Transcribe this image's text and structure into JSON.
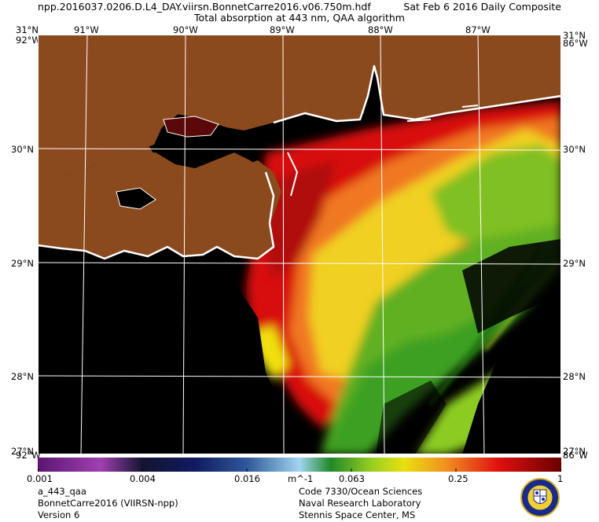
{
  "header": {
    "file": "npp.2016037.0206.D.L4_DAY.viirsn.BonnetCarre2016.v06.750m.hdf",
    "date": "Sat Feb  6 2016 Daily Composite",
    "product": "Total absorption at 443 nm, QAA algorithm"
  },
  "graticule": {
    "lon_labels": [
      "91°W",
      "90°W",
      "89°W",
      "88°W",
      "87°W"
    ],
    "lat_labels": [
      "31°N",
      "30°N",
      "29°N",
      "28°N",
      "27°N"
    ],
    "corner_labels": [
      "92°W",
      "86°W"
    ]
  },
  "colorbar": {
    "ticks": [
      "0.001",
      "0.004",
      "0.016",
      "0.063",
      "0.25",
      "1"
    ],
    "unit": "m^-1",
    "colors": [
      "#6a1a7a",
      "#a040b0",
      "#101850",
      "#2c5090",
      "#9ad0f0",
      "#28a020",
      "#e0e000",
      "#f09020",
      "#e01010",
      "#700000"
    ]
  },
  "footer": {
    "left": [
      "a_443_qaa",
      "BonnetCarre2016 (VIIRSN-npp)",
      "Version 6"
    ],
    "right": [
      "Code 7330/Ocean Sciences",
      "Naval Research Laboratory",
      "Stennis Space Center, MS"
    ]
  },
  "logo": "nrl-seal-icon",
  "map_colors": {
    "land": "#8b4a1e",
    "no_data": "#000000",
    "coastline": "#ffffff"
  }
}
